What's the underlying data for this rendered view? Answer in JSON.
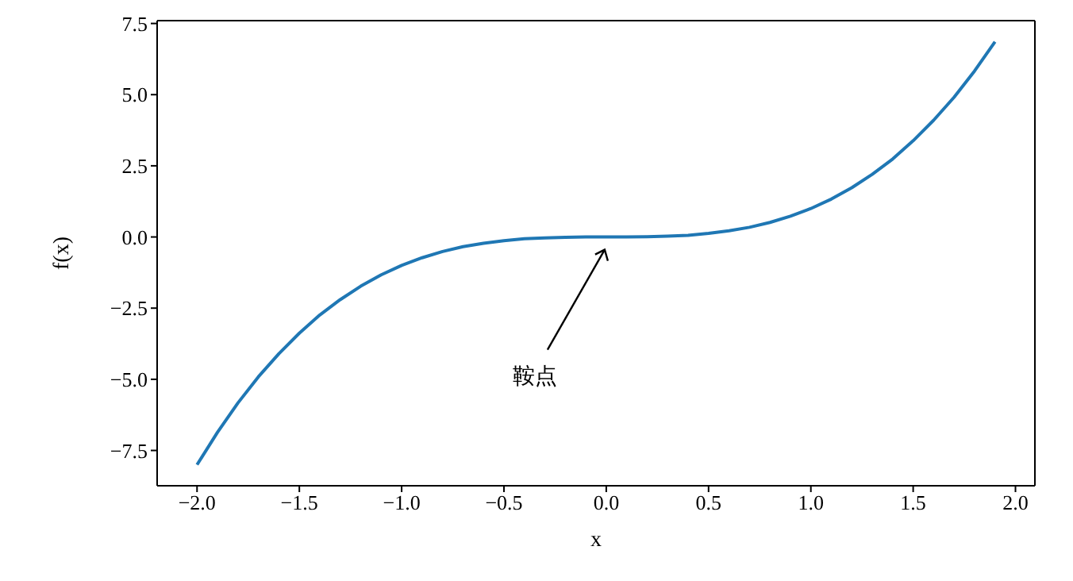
{
  "chart_data": {
    "type": "line",
    "xlabel": "x",
    "ylabel": "f(x)",
    "x": [
      -2,
      -1.9,
      -1.8,
      -1.7,
      -1.6,
      -1.5,
      -1.4,
      -1.3,
      -1.2,
      -1.1,
      -1,
      -0.9,
      -0.8,
      -0.7,
      -0.6,
      -0.5,
      -0.4,
      -0.3,
      -0.2,
      -0.1,
      0,
      0.1,
      0.2,
      0.3,
      0.4,
      0.5,
      0.6,
      0.7,
      0.8,
      0.9,
      1,
      1.1,
      1.2,
      1.3,
      1.4,
      1.5,
      1.6,
      1.7,
      1.8,
      1.9
    ],
    "series": [
      {
        "color": "#1f77b4",
        "values": [
          -8,
          -6.86,
          -5.83,
          -4.91,
          -4.1,
          -3.38,
          -2.74,
          -2.2,
          -1.73,
          -1.33,
          -1,
          -0.73,
          -0.51,
          -0.34,
          -0.22,
          -0.13,
          -0.06,
          -0.03,
          -0.01,
          0,
          0,
          0,
          0.01,
          0.03,
          0.06,
          0.13,
          0.22,
          0.34,
          0.51,
          0.73,
          1,
          1.33,
          1.73,
          2.2,
          2.74,
          3.38,
          4.1,
          4.91,
          5.83,
          6.86
        ]
      }
    ],
    "xlim": [
      -2.195,
      2.095
    ],
    "ylim": [
      -8.74,
      7.6
    ],
    "xticks": [
      {
        "value": -2,
        "label": "−2.0"
      },
      {
        "value": -1.5,
        "label": "−1.5"
      },
      {
        "value": -1,
        "label": "−1.0"
      },
      {
        "value": -0.5,
        "label": "−0.5"
      },
      {
        "value": 0,
        "label": "0.0"
      },
      {
        "value": 0.5,
        "label": "0.5"
      },
      {
        "value": 1,
        "label": "1.0"
      },
      {
        "value": 1.5,
        "label": "1.5"
      },
      {
        "value": 2,
        "label": "2.0"
      }
    ],
    "yticks": [
      {
        "value": -7.5,
        "label": "−7.5"
      },
      {
        "value": -5,
        "label": "−5.0"
      },
      {
        "value": -2.5,
        "label": "−2.5"
      },
      {
        "value": 0,
        "label": "0.0"
      },
      {
        "value": 2.5,
        "label": "2.5"
      },
      {
        "value": 5,
        "label": "5.0"
      },
      {
        "value": 7.5,
        "label": "7.5"
      }
    ],
    "annotations": [
      {
        "text": "鞍点",
        "x": 0,
        "y": 0
      }
    ],
    "grid": false,
    "legend": false,
    "marker": "none",
    "line_style": "solid"
  }
}
